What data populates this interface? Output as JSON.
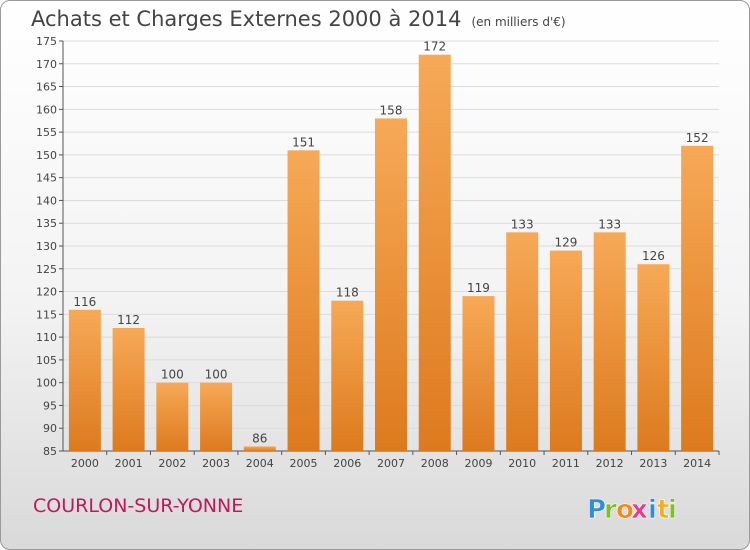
{
  "header": {
    "title": "Achats et Charges Externes 2000 à 2014",
    "unit": "(en milliers d'€)"
  },
  "footer": {
    "city": "COURLON-SUR-YONNE",
    "logo_text": "Proxiti",
    "logo_letters": [
      {
        "ch": "P",
        "color": "#2f8fd8"
      },
      {
        "ch": "r",
        "color": "#7fbf2a"
      },
      {
        "ch": "o",
        "color": "#f08a1c"
      },
      {
        "ch": "x",
        "color": "#e23c8a"
      },
      {
        "ch": "i",
        "color": "#2f8fd8"
      },
      {
        "ch": "t",
        "color": "#f0b21c"
      },
      {
        "ch": "i",
        "color": "#7fbf2a"
      }
    ]
  },
  "colors": {
    "bar_top": "#f7a957",
    "bar_bottom": "#dd7a1e",
    "text": "#444444",
    "city": "#c2185b"
  },
  "chart_data": {
    "type": "bar",
    "title": "Achats et Charges Externes 2000 à 2014",
    "subtitle": "(en milliers d'€)",
    "categories": [
      "2000",
      "2001",
      "2002",
      "2003",
      "2004",
      "2005",
      "2006",
      "2007",
      "2008",
      "2009",
      "2010",
      "2011",
      "2012",
      "2013",
      "2014"
    ],
    "values": [
      116,
      112,
      100,
      100,
      86,
      151,
      118,
      158,
      172,
      119,
      133,
      129,
      133,
      126,
      152
    ],
    "ylim": [
      85,
      175
    ],
    "yticks": [
      85,
      90,
      95,
      100,
      105,
      110,
      115,
      120,
      125,
      130,
      135,
      140,
      145,
      150,
      155,
      160,
      165,
      170,
      175
    ],
    "grid": true,
    "data_labels": true
  }
}
